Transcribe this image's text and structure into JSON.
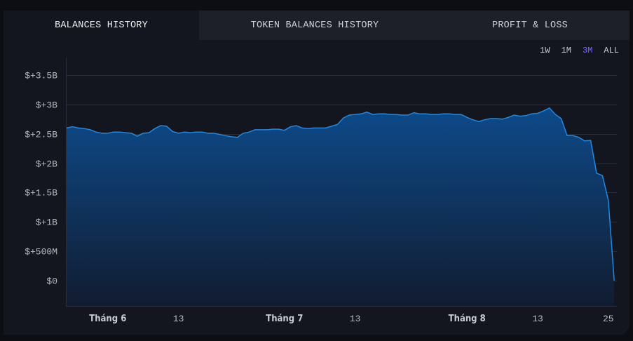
{
  "tabs": [
    {
      "label": "BALANCES HISTORY",
      "active": true
    },
    {
      "label": "TOKEN BALANCES HISTORY",
      "active": false
    },
    {
      "label": "PROFIT & LOSS",
      "active": false
    }
  ],
  "ranges": [
    {
      "label": "1W",
      "selected": false
    },
    {
      "label": "1M",
      "selected": false
    },
    {
      "label": "3M",
      "selected": true
    },
    {
      "label": "ALL",
      "selected": false
    }
  ],
  "colors": {
    "line": "#1e88e5",
    "fill_top": "#0d4a8a",
    "fill_bottom": "#111c30",
    "selected_range": "#7b61ff"
  },
  "chart_data": {
    "type": "area",
    "title": "",
    "xlabel": "",
    "ylabel": "",
    "x_start": "2024-05-25",
    "x_end": "2024-08-26",
    "x_step": "1 day",
    "ylim": [
      -0.43,
      3.6
    ],
    "y_unit": "B USD",
    "grid": true,
    "y_ticks": [
      {
        "value": 3.5,
        "label": "$+3.5B"
      },
      {
        "value": 3,
        "label": "$+3B"
      },
      {
        "value": 2.5,
        "label": "$+2.5B"
      },
      {
        "value": 2,
        "label": "$+2B"
      },
      {
        "value": 1.5,
        "label": "$+1.5B"
      },
      {
        "value": 1,
        "label": "$+1B"
      },
      {
        "value": 0.5,
        "label": "$+500M"
      },
      {
        "value": 0,
        "label": "$0"
      }
    ],
    "x_ticks": [
      {
        "date": "2024-06-01",
        "label": "Tháng 6",
        "bold": true
      },
      {
        "date": "2024-06-13",
        "label": "13",
        "bold": false
      },
      {
        "date": "2024-07-01",
        "label": "Tháng 7",
        "bold": true
      },
      {
        "date": "2024-07-13",
        "label": "13",
        "bold": false
      },
      {
        "date": "2024-08-01",
        "label": "Tháng 8",
        "bold": true
      },
      {
        "date": "2024-08-13",
        "label": "13",
        "bold": false
      },
      {
        "date": "2024-08-25",
        "label": "25",
        "bold": false
      }
    ],
    "values": [
      2.6,
      2.62,
      2.6,
      2.59,
      2.57,
      2.53,
      2.51,
      2.51,
      2.53,
      2.53,
      2.52,
      2.51,
      2.46,
      2.51,
      2.52,
      2.59,
      2.64,
      2.63,
      2.54,
      2.51,
      2.53,
      2.52,
      2.53,
      2.53,
      2.51,
      2.51,
      2.49,
      2.47,
      2.45,
      2.44,
      2.51,
      2.53,
      2.57,
      2.57,
      2.57,
      2.58,
      2.58,
      2.56,
      2.62,
      2.64,
      2.6,
      2.59,
      2.6,
      2.6,
      2.6,
      2.63,
      2.66,
      2.77,
      2.82,
      2.83,
      2.84,
      2.87,
      2.83,
      2.84,
      2.84,
      2.83,
      2.83,
      2.82,
      2.82,
      2.86,
      2.84,
      2.84,
      2.83,
      2.83,
      2.84,
      2.84,
      2.83,
      2.83,
      2.78,
      2.74,
      2.71,
      2.74,
      2.76,
      2.76,
      2.75,
      2.78,
      2.82,
      2.8,
      2.81,
      2.84,
      2.85,
      2.89,
      2.94,
      2.83,
      2.76,
      2.47,
      2.47,
      2.44,
      2.38,
      2.39,
      1.83,
      1.79,
      1.37,
      0
    ]
  }
}
